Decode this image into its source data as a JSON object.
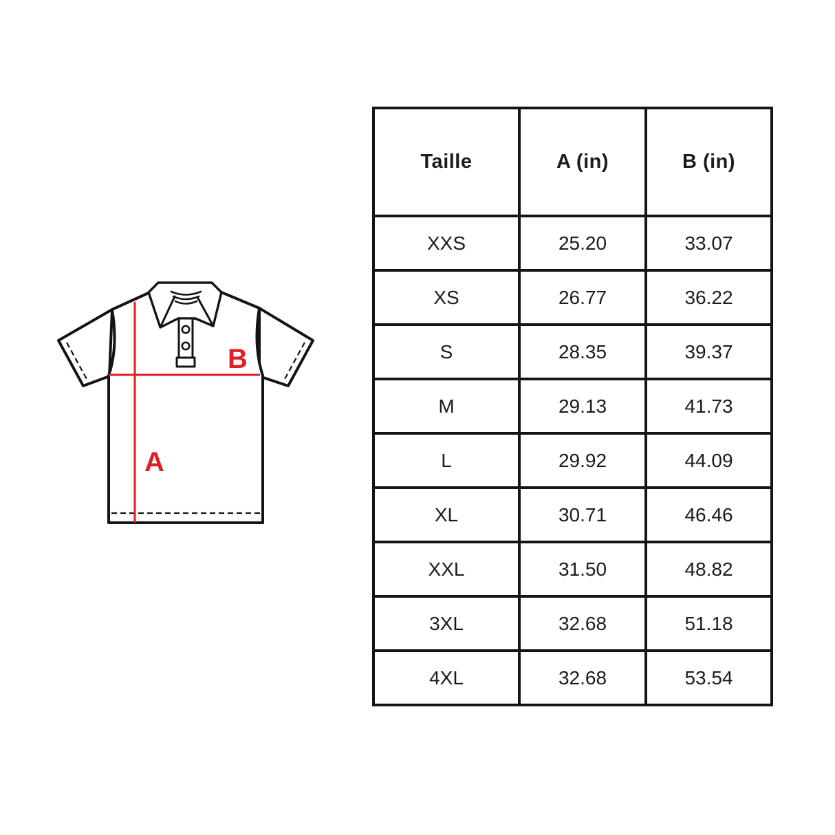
{
  "diagram": {
    "label_a": "A",
    "label_b": "B",
    "accent_color": "#e01e25",
    "line_color": "#141414"
  },
  "table": {
    "columns": [
      "Taille",
      "A (in)",
      "B (in)"
    ],
    "rows": [
      {
        "size": "XXS",
        "a": "25.20",
        "b": "33.07"
      },
      {
        "size": "XS",
        "a": "26.77",
        "b": "36.22"
      },
      {
        "size": "S",
        "a": "28.35",
        "b": "39.37"
      },
      {
        "size": "M",
        "a": "29.13",
        "b": "41.73"
      },
      {
        "size": "L",
        "a": "29.92",
        "b": "44.09"
      },
      {
        "size": "XL",
        "a": "30.71",
        "b": "46.46"
      },
      {
        "size": "XXL",
        "a": "31.50",
        "b": "48.82"
      },
      {
        "size": "3XL",
        "a": "32.68",
        "b": "51.18"
      },
      {
        "size": "4XL",
        "a": "32.68",
        "b": "53.54"
      }
    ]
  }
}
